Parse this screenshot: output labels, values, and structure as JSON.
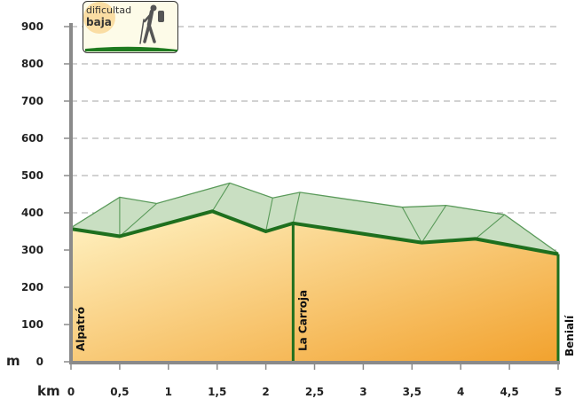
{
  "chart_data": {
    "type": "area",
    "x_unit": "km",
    "y_unit": "m",
    "xlim": [
      0,
      5
    ],
    "ylim": [
      0,
      900
    ],
    "x_ticks": [
      {
        "v": 0,
        "label": "0"
      },
      {
        "v": 0.5,
        "label": "0,5"
      },
      {
        "v": 1,
        "label": "1"
      },
      {
        "v": 1.5,
        "label": "1,5"
      },
      {
        "v": 2,
        "label": "2"
      },
      {
        "v": 2.5,
        "label": "2,5"
      },
      {
        "v": 3,
        "label": "3"
      },
      {
        "v": 3.5,
        "label": "3,5"
      },
      {
        "v": 4,
        "label": "4"
      },
      {
        "v": 4.5,
        "label": "4,5"
      },
      {
        "v": 5,
        "label": "5"
      }
    ],
    "y_ticks": [
      {
        "v": 0,
        "label": "0"
      },
      {
        "v": 100,
        "label": "100"
      },
      {
        "v": 200,
        "label": "200"
      },
      {
        "v": 300,
        "label": "300"
      },
      {
        "v": 400,
        "label": "400"
      },
      {
        "v": 500,
        "label": "500"
      },
      {
        "v": 600,
        "label": "600"
      },
      {
        "v": 700,
        "label": "700"
      },
      {
        "v": 800,
        "label": "800"
      },
      {
        "v": 900,
        "label": "900"
      }
    ],
    "grid": "horizontal-dashed",
    "series": [
      {
        "x": [
          0,
          0.5,
          1.45,
          2.0,
          2.28,
          3.6,
          4.15,
          5.0
        ],
        "values": [
          357,
          337,
          404,
          350,
          372,
          320,
          330,
          289
        ],
        "color": "#1e6f1e"
      }
    ],
    "relief": [
      {
        "x": [
          0,
          0.5,
          1.45,
          2.0,
          2.28,
          3.6,
          4.15,
          5.0
        ],
        "values": [
          357,
          337,
          404,
          350,
          372,
          320,
          330,
          289
        ]
      },
      {
        "x": [
          0,
          0.5,
          0.88,
          1.63,
          2.07,
          2.35,
          3.4,
          3.85,
          4.45,
          5.0
        ],
        "values": [
          360,
          442,
          425,
          480,
          440,
          455,
          415,
          420,
          395,
          292
        ]
      }
    ],
    "places": [
      {
        "name": "Alpatró",
        "x": 0
      },
      {
        "name": "La Carroja",
        "x": 2.28
      },
      {
        "name": "Benialí",
        "x": 5
      }
    ]
  },
  "badge": {
    "line1": "dificultad",
    "line2": "baja",
    "icon": "hiker-icon",
    "accent": "#1e7a1e"
  },
  "colors": {
    "profile_line": "#1e6f1e",
    "relief_fill": "#c9dfc2",
    "relief_line": "#5a9a5a",
    "gradient_start": "#fff3c4",
    "gradient_end": "#f2a22e",
    "axis": "#8a8a8a",
    "grid": "#a6a6a6"
  }
}
